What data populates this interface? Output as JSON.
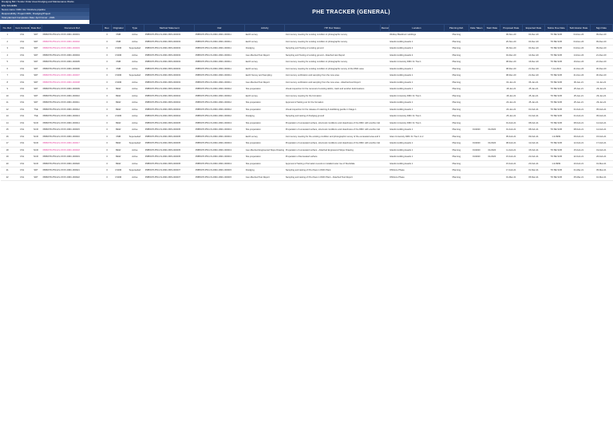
{
  "meta_lines": [
    "Dredging Bid / Tender Order Area Dredging and Maintenance Works",
    "ESL SCHEME",
    "Nexus name: DMC 3A / Onshore pipeline",
    "Responsibility: Project DMC, Dredging/Project",
    "Total planned Completion Date: April Cover - 2021"
  ],
  "banner_title": "PHE TRACKER (GENERAL)",
  "columns": [
    "No. Ref.",
    "Item Commitment",
    "Date Ref.",
    "Document Ref.",
    "Rev.",
    "Originator",
    "Type",
    "Method Statement",
    "Ref.",
    "Activity",
    "ITP Doc Status",
    "Remarks",
    "Location",
    "Planning Ref.",
    "Date Taken",
    "Start Date",
    "Proposed Date",
    "Expected Date",
    "Notice Due Date",
    "Submission Date",
    "Sign Date"
  ],
  "rows": [
    {
      "no": "1",
      "c1": "CS1",
      "c2": "SDT",
      "ref": "PRBW78-P50-HS-XXXX-DMC-000001",
      "rev": "0",
      "org": "XMB",
      "type": "Active",
      "ms": "PRBW78-P50-CS-DMC-BFS-000003",
      "ref2": "PRBW78-P50-CS-DMC-DMC-000011",
      "act": "Earth survey",
      "itp": "Joint survey meeting for existing condition & photographic survey",
      "loc": "Widdup Blackburn Holdings",
      "pl": "Planning",
      "d1": "",
      "d2": "",
      "d3": "06-Nov-20",
      "d4": "04-Dec-20",
      "d5": "TO BE SUB",
      "d6": "04-Dec-20",
      "d7": "09-Dec-20",
      "pink": false
    },
    {
      "no": "2",
      "c1": "CS1",
      "c2": "SDT",
      "ref": "PRBW78-P50-HS-XXXX-DMC-000002",
      "rev": "0",
      "org": "XMB",
      "type": "Active",
      "ms": "PRBW78-P50-CS-DMC-BFS-000003",
      "ref2": "PRBW78-P50-CS-DMC-DMC-000011",
      "act": "Earth survey",
      "itp": "Joint survey meeting for existing condition & photographic survey",
      "loc": "Islands Holding Heads 1",
      "pl": "Planning",
      "d1": "",
      "d2": "",
      "d3": "20-Nov-20",
      "d4": "04-Dec-20",
      "d5": "TO BE SUB",
      "d6": "04-Dec-20",
      "d7": "09-Dec-20",
      "pink": true
    },
    {
      "no": "3",
      "c1": "CS1",
      "c2": "SDT",
      "ref": "PRBW78-P50-HS-XXXX-DMC-000003",
      "rev": "0",
      "org": "CSDM",
      "type": "Superseded",
      "ms": "PRBW78-P50-CS-DMC-BFS-000003",
      "ref2": "PRBW78-P50-CS-DMC-DMC-000011",
      "act": "Dredging",
      "itp": "Sampling and Testing of existing ground",
      "loc": "Islands Holding Heads 2",
      "pl": "Planning",
      "d1": "",
      "d2": "",
      "d3": "30-Nov-20",
      "d4": "04-Dec-20",
      "d5": "TO BE SUB",
      "d6": "04-Dec-20",
      "d7": "09-Dec-20",
      "pink": true
    },
    {
      "no": "4",
      "c1": "CS1",
      "c2": "SDT",
      "ref": "PRBW78-P50-HS-XXXX-DMC-000004",
      "rev": "0",
      "org": "CSDM",
      "type": "Active",
      "ms": "PRBW78-P50-CS-DMC-BFS-000003",
      "ref2": "PRBW78-P50-CS-DMC-DMC-000011",
      "act": "Geo-Meshed Test Report",
      "itp": "Sampling and Testing of existing ground - Attached test Report",
      "loc": "Islands Holding Heads 2",
      "pl": "Planning",
      "d1": "",
      "d2": "",
      "d3": "04-Dec-20",
      "d4": "14-Dec-20",
      "d5": "TO BE SUB",
      "d6": "14-Dec-20",
      "d7": "21-Dec-20",
      "pink": false
    },
    {
      "no": "5",
      "c1": "CS1",
      "c2": "SDT",
      "ref": "PRBW78-P50-HS-XXXX-DMC-000005",
      "rev": "0",
      "org": "XMB",
      "type": "Active",
      "ms": "PRBW78-P50-CS-DMC-BFS-000003",
      "ref2": "PRBW78-P50-CS-DMC-DMC-000011",
      "act": "Earth survey",
      "itp": "Joint survey meeting for existing condition & photographic survey",
      "loc": "Islands University DMC Fn Tow 1",
      "pl": "Planning",
      "d1": "",
      "d2": "",
      "d3": "08-Dec-20",
      "d4": "16-Dec-20",
      "d5": "TO BE SUB",
      "d6": "16-Dec-20",
      "d7": "22-Dec-20",
      "pink": false
    },
    {
      "no": "6",
      "c1": "CS1",
      "c2": "SDT",
      "ref": "PRBW78-P50-HS-XXXX-DMC-000006",
      "rev": "0",
      "org": "XMB",
      "type": "Active",
      "ms": "PRBW78-P50-CS-DMC-BFS-000003",
      "ref2": "PRBW78-P50-CS-DMC-DMC-000011",
      "act": "Earth survey",
      "itp": "Joint survey meeting for existing condition & photographic survey of the DMC area",
      "loc": "Islands Holding Heads 1",
      "pl": "Planning",
      "d1": "",
      "d2": "",
      "d3": "08-Dec-20",
      "d4": "21-Dec-20",
      "d5": "7-Jul-2021",
      "d6": "21-Dec-20",
      "d7": "30-Dec-20",
      "pink": false
    },
    {
      "no": "7",
      "c1": "CS1",
      "c2": "SDT",
      "ref": "PRBW78-P50-HS-XXXX-DMC-000007",
      "rev": "0",
      "org": "CSDM",
      "type": "Superseded",
      "ms": "PRBW78-P50-CS-DMC-BFS-000003",
      "ref2": "PRBW78-P50-CS-DMC-DMC-000011",
      "act": "Earth Survey and Sampling",
      "itp": "Joint survey verification and sampling from the new area",
      "loc": "Islands Holding Heads 1",
      "pl": "Planning",
      "d1": "",
      "d2": "",
      "d3": "08-Dec-20",
      "d4": "21-Dec-20",
      "d5": "TO BE SUB",
      "d6": "21-Dec-20",
      "d7": "30-Dec-20",
      "pink": true
    },
    {
      "no": "8",
      "c1": "CS1",
      "c2": "SDT",
      "ref": "PRBW78-P50-HS-XXXX-DMC-000008",
      "rev": "0",
      "org": "CSDM",
      "type": "Active",
      "ms": "PRBW78-P50-CS-DMC-BFS-000003",
      "ref2": "PRBW78-P50-CS-DMC-DMC-000011",
      "act": "Geo-Meshed Test Report",
      "itp": "Joint survey verification and sampling from the new area - Attached test Report",
      "loc": "Islands Holding Heads 1",
      "pl": "Planning",
      "d1": "",
      "d2": "",
      "d3": "04-Jan-21",
      "d4": "06-Jan-21",
      "d5": "TO BE SUB",
      "d6": "06-Jan-21",
      "d7": "12-Jan-21",
      "pink": true
    },
    {
      "no": "9",
      "c1": "CS1",
      "c2": "SDT",
      "ref": "PRBW78-P50-HS-XXXX-DMC-000009",
      "rev": "0",
      "org": "BEW",
      "type": "Active",
      "ms": "PRBW78-P50-CS-DMC-BFS-000004",
      "ref2": "PRBW78-P50-CS-DMC-DMC-000012",
      "act": "Site preparation",
      "itp": "Visual inspection for the removal of existing debris, trash and another deformations",
      "loc": "Islands Holding Heads 1",
      "pl": "Planning",
      "d1": "",
      "d2": "",
      "d3": "18-Jan-21",
      "d4": "25-Jan-21",
      "d5": "TO BE SUB",
      "d6": "25-Jan-21",
      "d7": "29-Jan-21",
      "pink": false
    },
    {
      "no": "10",
      "c1": "CS1",
      "c2": "SDT",
      "ref": "PRBW78-P50-HS-XXXX-DMC-000010",
      "rev": "0",
      "org": "BEW",
      "type": "Active",
      "ms": "PRBW78-P50-CS-DMC-BFS-000004",
      "ref2": "PRBW78-P50-CS-DMC-DMC-000012",
      "act": "Earth survey",
      "itp": "Joint survey meeting for the formation",
      "loc": "Islands University DMC Fn Tow 1",
      "pl": "Planning",
      "d1": "",
      "d2": "",
      "d3": "18-Jan-21",
      "d4": "25-Jan-21",
      "d5": "TO BE SUB",
      "d6": "25-Jan-21",
      "d7": "29-Jan-21",
      "pink": false
    },
    {
      "no": "11",
      "c1": "CS1",
      "c2": "SDT",
      "ref": "PRBW78-P50-HS-XXXX-DMC-000011",
      "rev": "0",
      "org": "BEW",
      "type": "Active",
      "ms": "PRBW78-P50-CS-DMC-BFS-000004",
      "ref2": "PRBW78-P50-CS-DMC-DMC-000012",
      "act": "Site preparation",
      "itp": "Approval of Setting out for the formation",
      "loc": "Islands Holding Heads 1",
      "pl": "Planning",
      "d1": "",
      "d2": "",
      "d3": "20-Jan-21",
      "d4": "25-Jan-21",
      "d5": "TO BE SUB",
      "d6": "25-Jan-21",
      "d7": "29-Jan-21",
      "pink": false
    },
    {
      "no": "12",
      "c1": "CS1",
      "c2": "TSE",
      "ref": "PRBW78-P50-HS-XXXX-DMC-000012",
      "rev": "0",
      "org": "BEW",
      "type": "Active",
      "ms": "PRBW78-P50-CS-DMC-BFS-000004",
      "ref2": "PRBW78-P50-CS-DMC-DMC-000012",
      "act": "Site preparation",
      "itp": "Visual inspection for the release of retaining & stabilising geotile in Stage 1",
      "loc": "Islands Holding Heads 1",
      "pl": "Planning",
      "d1": "",
      "d2": "",
      "d3": "20-Jan-21",
      "d4": "01-Feb-21",
      "d5": "TO BE SUB",
      "d6": "01-Feb-21",
      "d7": "05-Feb-21",
      "pink": false
    },
    {
      "no": "13",
      "c1": "CS1",
      "c2": "TSE",
      "ref": "PRBW78-P50-HS-XXXX-DMC-000013",
      "rev": "0",
      "org": "CSDM",
      "type": "Active",
      "ms": "PRBW78-P50-CS-DMC-BFS-000004",
      "ref2": "PRBW78-P50-CS-DMC-DMC-000012",
      "act": "Dredging",
      "itp": "Sampling and testing of dredging ground",
      "loc": "Islands University DMC Fn Tow 1",
      "pl": "Planning",
      "d1": "",
      "d2": "",
      "d3": "25-Jan-21",
      "d4": "01-Feb-21",
      "d5": "TO BE SUB",
      "d6": "01-Feb-21",
      "d7": "05-Feb-21",
      "pink": false
    },
    {
      "no": "14",
      "c1": "CS1",
      "c2": "NCR",
      "ref": "PRBW78-P50-HS-XXXX-DMC-000014",
      "rev": "0",
      "org": "BEW",
      "type": "Active",
      "ms": "PRBW78-P50-CS-DMC-BFS-000005",
      "ref2": "PRBW78-P50-CS-DMC-DMC-000013",
      "act": "Site preparation",
      "itp": "Preparation of excavated surface, structural conditions and cleanliness of the DMC with another deformations",
      "loc": "Islands University DMC Fn Tow 1",
      "pl": "Planning",
      "d1": "",
      "d2": "",
      "d3": "01-Feb-21",
      "d4": "08-Feb-21",
      "d5": "TO BE SUB",
      "d6": "08-Feb-21",
      "d7": "12-Feb-21",
      "pink": false
    },
    {
      "no": "15",
      "c1": "CS1",
      "c2": "NCR",
      "ref": "PRBW78-P50-HS-XXXX-DMC-000015",
      "rev": "0",
      "org": "BEW",
      "type": "Active",
      "ms": "PRBW78-P50-CS-DMC-BFS-000005",
      "ref2": "PRBW78-P50-CS-DMC-DMC-000013",
      "act": "Site preparation",
      "itp": "Preparation of excavated surface, structural conditions and cleanliness of the DMC with another deformations",
      "loc": "Islands Holding Heads 1",
      "pl": "Planning",
      "d1": "01/2020",
      "d2": "01/2020",
      "d3": "01-Feb-21",
      "d4": "08-Feb-21",
      "d5": "TO BE SUB",
      "d6": "08-Feb-21",
      "d7": "12-Feb-21",
      "pink": false
    },
    {
      "no": "16",
      "c1": "CS1",
      "c2": "NCR",
      "ref": "PRBW78-P50-HS-XXXX-DMC-000016",
      "rev": "0",
      "org": "XMB",
      "type": "Superseded",
      "ms": "PRBW78-P50-CS-DMC-BFS-000005",
      "ref2": "PRBW78-P50-CS-DMC-DMC-000013",
      "act": "Earth survey",
      "itp": "Joint survey meeting for the existing condition and photographic survey of the excavated area and the DMC",
      "loc": "Islam University DMC Fn Tow 1 & 2",
      "pl": "Planning",
      "d1": "",
      "d2": "",
      "d3": "05-Feb-21",
      "d4": "09-Feb-21",
      "d5": "1-9-9999",
      "d6": "09-Feb-21",
      "d7": "15-Feb-21",
      "pink": false
    },
    {
      "no": "17",
      "c1": "CS1",
      "c2": "NCR",
      "ref": "PRBW78-P50-HS-XXXX-DMC-000017",
      "rev": "0",
      "org": "BEW",
      "type": "Superseded",
      "ms": "PRBW78-P50-CS-DMC-BFS-000005",
      "ref2": "PRBW78-P50-CS-DMC-DMC-000013",
      "act": "Site preparation",
      "itp": "Preparation of excavated surface, structural conditions and cleanliness of the DMC with another deformations",
      "loc": "Islands Holding Heads 1",
      "pl": "Planning",
      "d1": "01/2020",
      "d2": "01/2020",
      "d3": "08-Feb-21",
      "d4": "12-Feb-21",
      "d5": "TO BE SUB",
      "d6": "12-Feb-21",
      "d7": "17-Feb-21",
      "pink": true
    },
    {
      "no": "18",
      "c1": "CS1",
      "c2": "NCR",
      "ref": "PRBW78-P50-HS-XXXX-DMC-000018",
      "rev": "0",
      "org": "BEW",
      "type": "Active",
      "ms": "PRBW78-P50-CS-DMC-BFS-000005",
      "ref2": "PRBW78-P50-CS-DMC-DMC-000013",
      "act": "Geo-Meshed Engineered Slope Drawing",
      "itp": "Preparation of excavated surface - Attached Engineered Slope Drawing",
      "loc": "Islands Holding Heads 1",
      "pl": "Planning",
      "d1": "01/2020",
      "d2": "01/2020",
      "d3": "11-Feb-21",
      "d4": "15-Feb-21",
      "d5": "TO BE SUB",
      "d6": "15-Feb-21",
      "d7": "19-Feb-21",
      "pink": true
    },
    {
      "no": "19",
      "c1": "CS1",
      "c2": "NCR",
      "ref": "PRBW78-P50-HS-XXXX-DMC-000019",
      "rev": "0",
      "org": "BEW",
      "type": "Active",
      "ms": "PRBW78-P50-CS-DMC-BFS-000005",
      "ref2": "PRBW78-P50-CS-DMC-DMC-000013",
      "act": "Site preparation",
      "itp": "Preparation of Excavated surface",
      "loc": "Islands Holding Heads 1",
      "pl": "Planning",
      "d1": "01/2020",
      "d2": "01/2020",
      "d3": "15-Feb-21",
      "d4": "22-Feb-21",
      "d5": "TO BE SUB",
      "d6": "22-Feb-21",
      "d7": "26-Feb-21",
      "pink": false
    },
    {
      "no": "20",
      "c1": "CS1",
      "c2": "NCR",
      "ref": "PRBW78-P50-HS-XXXX-DMC-000020",
      "rev": "0",
      "org": "BEW",
      "type": "Active",
      "ms": "PRBW78-P50-CS-DMC-BFS-000005",
      "ref2": "PRBW78-P50-CS-DMC-DMC-000013",
      "act": "Site preparation",
      "itp": "Approval of Setting of formation Levels to installed outer toe of Stockdale",
      "loc": "Islands Holding Heads 1",
      "pl": "Planning",
      "d1": "",
      "d2": "",
      "d3": "15-Feb-21",
      "d4": "23-Feb-21",
      "d5": "1-9-9999",
      "d6": "23-Feb-21",
      "d7": "01-Mar-21",
      "pink": false
    },
    {
      "no": "21",
      "c1": "CS1",
      "c2": "SDT",
      "ref": "PRBW78-P50-HS-XXXX-DMC-000021",
      "rev": "0",
      "org": "CSDM",
      "type": "Superseded",
      "ms": "PRBW78-P50-CS-DMC-BFS-000007",
      "ref2": "PRBW78-P50-CS-DMC-DMC-000015",
      "act": "Dredging",
      "itp": "Sampling and testing of Pre-Pave in DMC Plant",
      "loc": "Offshore Phase",
      "pl": "Planning",
      "d1": "",
      "d2": "",
      "d3": "17-Feb-21",
      "d4": "01-Mar-21",
      "d5": "TO BE SUB",
      "d6": "01-Mar-21",
      "d7": "05-Mar-21",
      "pink": false
    },
    {
      "no": "22",
      "c1": "CS1",
      "c2": "SDT",
      "ref": "PRBW78-P50-HS-XXXX-DMC-000022",
      "rev": "0",
      "org": "CSDM",
      "type": "Active",
      "ms": "PRBW78-P50-CS-DMC-BFS-000007",
      "ref2": "PRBW78-P50-CS-DMC-DMC-000015",
      "act": "Geo-Meshed Test Report",
      "itp": "Sampling and testing of Pre-Pave in DMC Plant - Attached Test Report",
      "loc": "Offshore Phase",
      "pl": "Planning",
      "d1": "",
      "d2": "",
      "d3": "01-Mar-21",
      "d4": "05-Mar-21",
      "d5": "TO BE SUB",
      "d6": "05-Mar-21",
      "d7": "10-Mar-21",
      "pink": false
    }
  ]
}
